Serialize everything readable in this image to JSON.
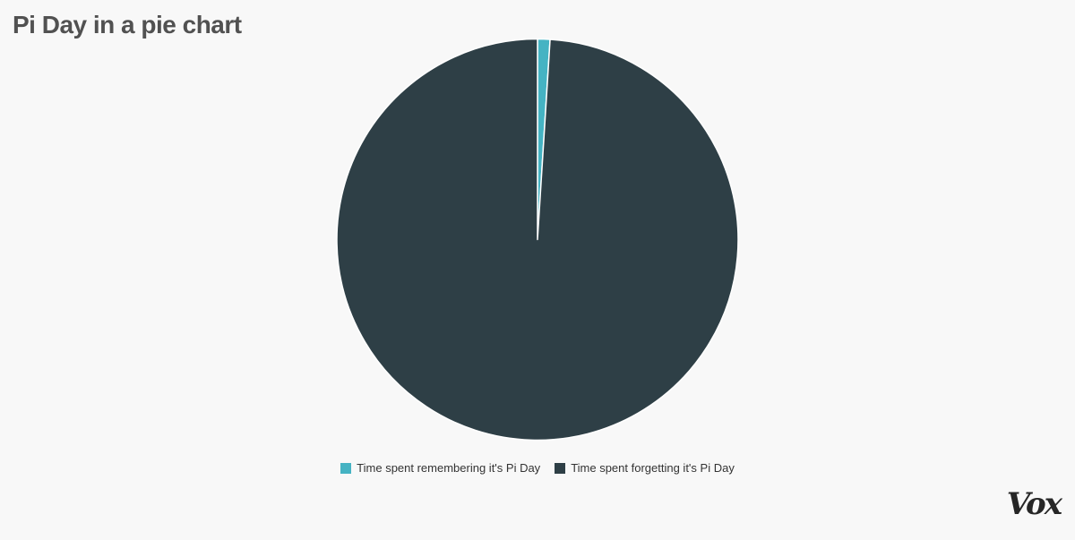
{
  "chart_data": {
    "type": "pie",
    "title": "Pi Day in a pie chart",
    "slices": [
      {
        "label": "Time spent remembering it's Pi Day",
        "value": 1,
        "color": "#45b3c3"
      },
      {
        "label": "Time spent forgetting it's Pi Day",
        "value": 99,
        "color": "#2e3f46"
      }
    ],
    "legend_position": "bottom",
    "colors": {
      "background": "#f8f8f8",
      "slice_border": "#ffffff"
    }
  },
  "legend": {
    "items": [
      {
        "label": "Time spent remembering it's Pi Day",
        "color": "#45b3c3"
      },
      {
        "label": "Time spent forgetting it's Pi Day",
        "color": "#2e3f46"
      }
    ]
  },
  "branding": {
    "logo": "Vox"
  }
}
